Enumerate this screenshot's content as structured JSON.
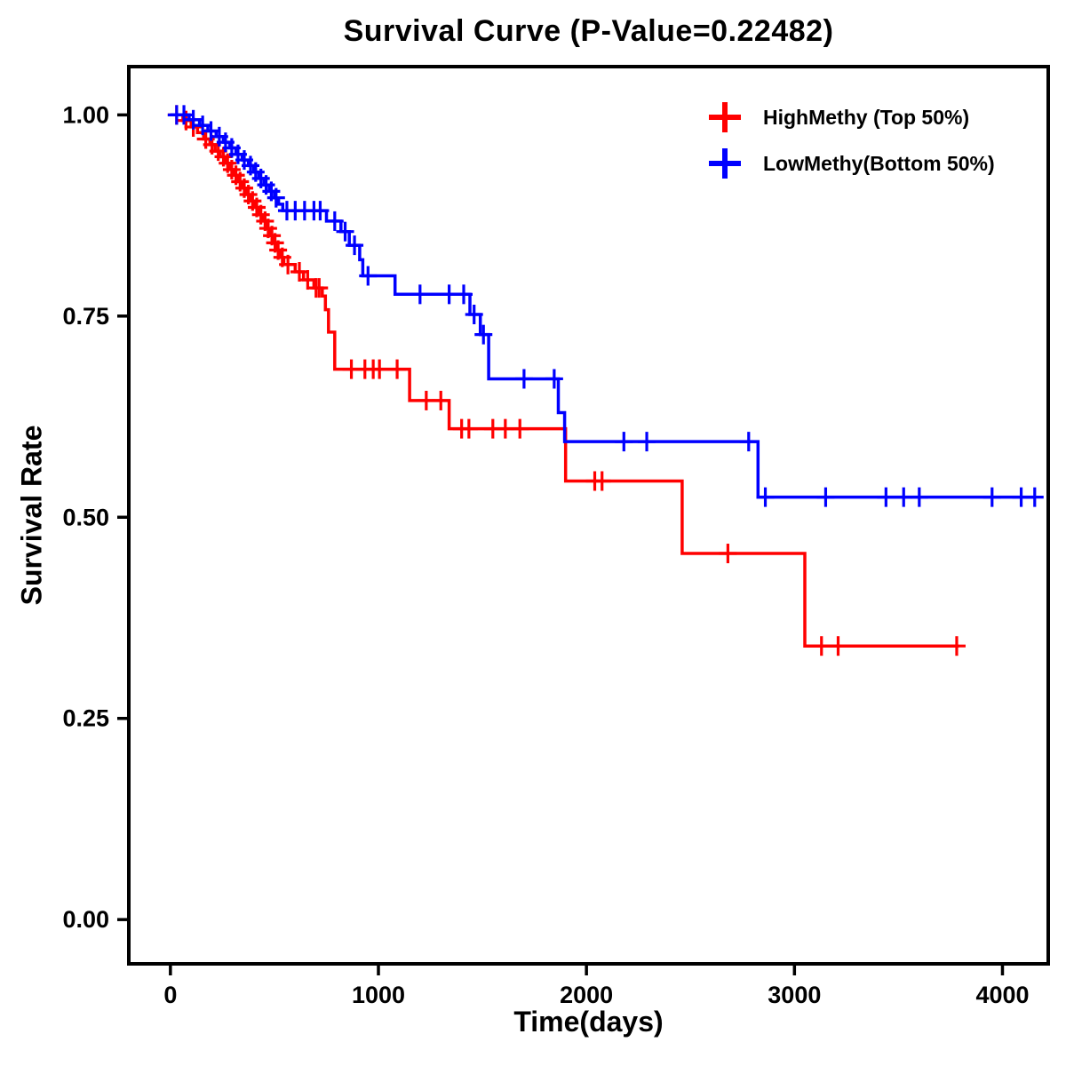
{
  "figure": {
    "background": "#FFFFFF",
    "axis_color": "#000000"
  },
  "chart_data": {
    "type": "line",
    "subtype": "kaplan-meier-step",
    "title": "Survival Curve (P-Value=0.22482)",
    "xlabel": "Time(days)",
    "ylabel": "Survival Rate",
    "xlim": [
      -200,
      4220
    ],
    "ylim": [
      -0.055,
      1.06
    ],
    "grid": false,
    "legend_position": "top-right",
    "xticks": [
      {
        "value": 0,
        "label": "0"
      },
      {
        "value": 1000,
        "label": "1000"
      },
      {
        "value": 2000,
        "label": "2000"
      },
      {
        "value": 3000,
        "label": "3000"
      },
      {
        "value": 4000,
        "label": "4000"
      }
    ],
    "yticks": [
      {
        "value": 0.0,
        "label": "0.00"
      },
      {
        "value": 0.25,
        "label": "0.25"
      },
      {
        "value": 0.5,
        "label": "0.50"
      },
      {
        "value": 0.75,
        "label": "0.75"
      },
      {
        "value": 1.0,
        "label": "1.00"
      }
    ],
    "series": [
      {
        "name": "HighMethy (Top 50%)",
        "color": "#FF0000",
        "end_time": 3790,
        "steps": [
          [
            0,
            1.0
          ],
          [
            60,
            0.993
          ],
          [
            100,
            0.985
          ],
          [
            130,
            0.978
          ],
          [
            160,
            0.97
          ],
          [
            190,
            0.963
          ],
          [
            215,
            0.955
          ],
          [
            240,
            0.948
          ],
          [
            265,
            0.94
          ],
          [
            285,
            0.932
          ],
          [
            305,
            0.925
          ],
          [
            325,
            0.917
          ],
          [
            345,
            0.909
          ],
          [
            365,
            0.901
          ],
          [
            385,
            0.893
          ],
          [
            405,
            0.885
          ],
          [
            425,
            0.876
          ],
          [
            445,
            0.868
          ],
          [
            465,
            0.859
          ],
          [
            480,
            0.85
          ],
          [
            495,
            0.841
          ],
          [
            510,
            0.832
          ],
          [
            525,
            0.823
          ],
          [
            545,
            0.814
          ],
          [
            600,
            0.805
          ],
          [
            640,
            0.795
          ],
          [
            690,
            0.785
          ],
          [
            730,
            0.775
          ],
          [
            745,
            0.758
          ],
          [
            760,
            0.73
          ],
          [
            790,
            0.684
          ],
          [
            1150,
            0.645
          ],
          [
            1340,
            0.61
          ],
          [
            1900,
            0.545
          ],
          [
            2460,
            0.455
          ],
          [
            3050,
            0.34
          ]
        ],
        "censor_marks": [
          [
            30,
            1.0
          ],
          [
            75,
            0.993
          ],
          [
            110,
            0.985
          ],
          [
            170,
            0.97
          ],
          [
            200,
            0.963
          ],
          [
            230,
            0.955
          ],
          [
            255,
            0.948
          ],
          [
            275,
            0.94
          ],
          [
            295,
            0.932
          ],
          [
            315,
            0.925
          ],
          [
            335,
            0.917
          ],
          [
            355,
            0.909
          ],
          [
            375,
            0.901
          ],
          [
            395,
            0.893
          ],
          [
            415,
            0.885
          ],
          [
            435,
            0.876
          ],
          [
            455,
            0.868
          ],
          [
            470,
            0.859
          ],
          [
            488,
            0.85
          ],
          [
            503,
            0.841
          ],
          [
            518,
            0.832
          ],
          [
            538,
            0.823
          ],
          [
            565,
            0.814
          ],
          [
            620,
            0.805
          ],
          [
            660,
            0.795
          ],
          [
            700,
            0.785
          ],
          [
            715,
            0.785
          ],
          [
            870,
            0.684
          ],
          [
            935,
            0.684
          ],
          [
            975,
            0.684
          ],
          [
            1005,
            0.684
          ],
          [
            1090,
            0.684
          ],
          [
            1230,
            0.645
          ],
          [
            1300,
            0.645
          ],
          [
            1400,
            0.61
          ],
          [
            1435,
            0.61
          ],
          [
            1550,
            0.61
          ],
          [
            1610,
            0.61
          ],
          [
            1680,
            0.61
          ],
          [
            2040,
            0.545
          ],
          [
            2075,
            0.545
          ],
          [
            2680,
            0.455
          ],
          [
            3130,
            0.34
          ],
          [
            3210,
            0.34
          ],
          [
            3780,
            0.34
          ]
        ]
      },
      {
        "name": "LowMethy(Bottom 50%)",
        "color": "#0000FF",
        "end_time": 4160,
        "steps": [
          [
            0,
            1.0
          ],
          [
            90,
            0.994
          ],
          [
            140,
            0.987
          ],
          [
            180,
            0.98
          ],
          [
            220,
            0.973
          ],
          [
            255,
            0.966
          ],
          [
            285,
            0.959
          ],
          [
            315,
            0.951
          ],
          [
            345,
            0.944
          ],
          [
            375,
            0.937
          ],
          [
            400,
            0.929
          ],
          [
            425,
            0.921
          ],
          [
            450,
            0.913
          ],
          [
            475,
            0.905
          ],
          [
            500,
            0.897
          ],
          [
            520,
            0.889
          ],
          [
            540,
            0.881
          ],
          [
            750,
            0.868
          ],
          [
            820,
            0.855
          ],
          [
            860,
            0.838
          ],
          [
            910,
            0.82
          ],
          [
            925,
            0.8
          ],
          [
            1080,
            0.777
          ],
          [
            1440,
            0.752
          ],
          [
            1490,
            0.727
          ],
          [
            1530,
            0.672
          ],
          [
            1865,
            0.63
          ],
          [
            1895,
            0.594
          ],
          [
            2825,
            0.525
          ]
        ],
        "censor_marks": [
          [
            30,
            1.0
          ],
          [
            65,
            1.0
          ],
          [
            110,
            0.994
          ],
          [
            155,
            0.987
          ],
          [
            195,
            0.98
          ],
          [
            235,
            0.973
          ],
          [
            265,
            0.966
          ],
          [
            295,
            0.959
          ],
          [
            325,
            0.951
          ],
          [
            355,
            0.944
          ],
          [
            385,
            0.937
          ],
          [
            410,
            0.929
          ],
          [
            435,
            0.921
          ],
          [
            460,
            0.913
          ],
          [
            485,
            0.905
          ],
          [
            508,
            0.897
          ],
          [
            560,
            0.881
          ],
          [
            600,
            0.881
          ],
          [
            645,
            0.881
          ],
          [
            690,
            0.881
          ],
          [
            720,
            0.881
          ],
          [
            790,
            0.868
          ],
          [
            840,
            0.855
          ],
          [
            885,
            0.838
          ],
          [
            950,
            0.8
          ],
          [
            1200,
            0.777
          ],
          [
            1340,
            0.777
          ],
          [
            1410,
            0.777
          ],
          [
            1460,
            0.752
          ],
          [
            1505,
            0.727
          ],
          [
            1700,
            0.672
          ],
          [
            1845,
            0.672
          ],
          [
            2180,
            0.594
          ],
          [
            2290,
            0.594
          ],
          [
            2780,
            0.594
          ],
          [
            2860,
            0.525
          ],
          [
            3150,
            0.525
          ],
          [
            3440,
            0.525
          ],
          [
            3525,
            0.525
          ],
          [
            3600,
            0.525
          ],
          [
            3950,
            0.525
          ],
          [
            4090,
            0.525
          ],
          [
            4155,
            0.525
          ]
        ]
      }
    ]
  }
}
